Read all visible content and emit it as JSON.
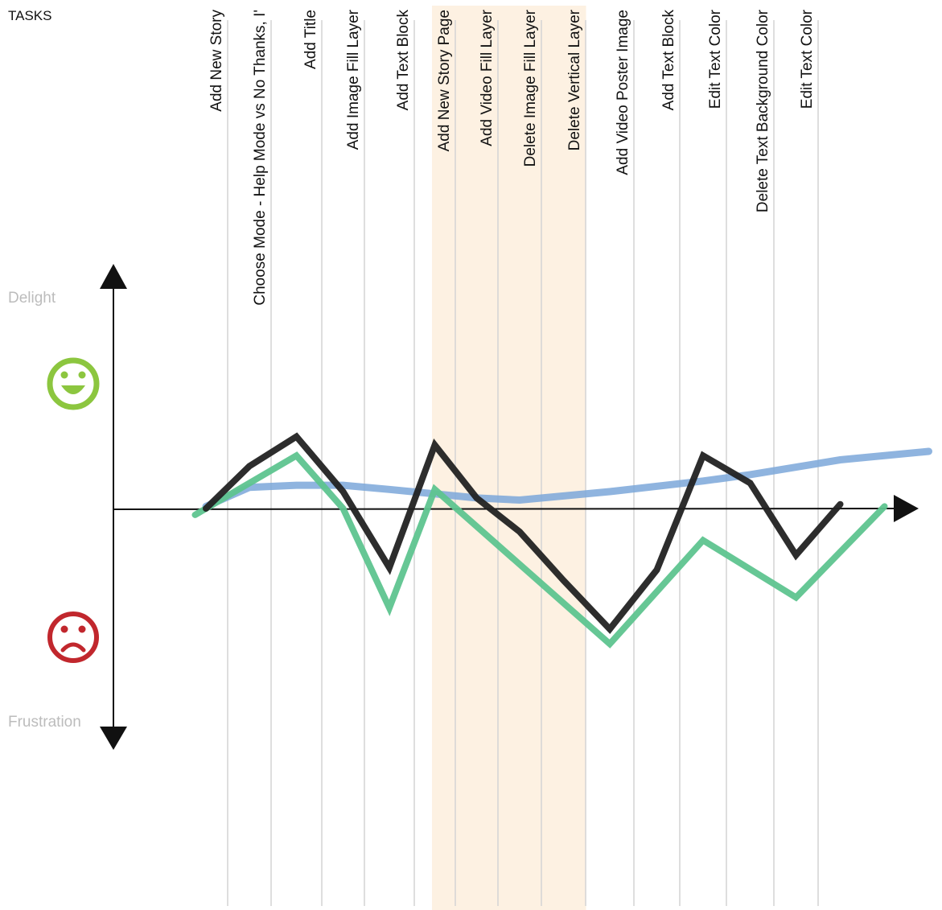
{
  "header": {
    "title": "TASKS"
  },
  "axis": {
    "top_label": "Delight",
    "bottom_label": "Frustration"
  },
  "icons": {
    "delight": {
      "name": "smiley-face-icon",
      "color": "#8cc63f"
    },
    "frustration": {
      "name": "sad-face-icon",
      "color": "#c1272d"
    }
  },
  "colors": {
    "highlight_band": "#fdf1e2",
    "gridline": "#d4d4d4",
    "axis": "#111111"
  },
  "chart_data": {
    "type": "line",
    "title": "",
    "xlabel": "TASKS",
    "ylabel": "",
    "y_top_label": "Delight",
    "y_bottom_label": "Frustration",
    "ylim": [
      -1,
      1
    ],
    "grid": "vertical",
    "categories": [
      "Add New Story",
      "Choose Mode - Help Mode vs No Thanks, I'",
      "Add Title",
      "Add Image Fill Layer",
      "Add Text Block",
      "Add New Story Page",
      "Add Video Fill Layer",
      "Delete Image Fill Layer",
      "Delete Vertical Layer",
      "Add Video Poster Image",
      "Add Text Block",
      "Edit Text Color",
      "Delete Text Background Color",
      "Edit Text Color"
    ],
    "highlighted_categories": [
      5,
      6,
      7,
      8
    ],
    "series": [
      {
        "color": "#222222",
        "points": [
          [
            -0.5,
            0.0
          ],
          [
            0.5,
            0.2
          ],
          [
            1.5,
            0.34
          ],
          [
            2.5,
            0.08
          ],
          [
            3.5,
            -0.28
          ],
          [
            4.5,
            0.3
          ],
          [
            5.5,
            0.05
          ],
          [
            6.5,
            -0.11
          ],
          [
            7.5,
            -0.34
          ],
          [
            8.5,
            -0.57
          ],
          [
            9.5,
            -0.29
          ],
          [
            10.5,
            0.25
          ],
          [
            11.5,
            0.12
          ],
          [
            12.5,
            -0.22
          ],
          [
            13.5,
            0.02
          ]
        ]
      },
      {
        "color": "#5ec48f",
        "points": [
          [
            -0.75,
            -0.03
          ],
          [
            1.5,
            0.25
          ],
          [
            2.5,
            0.0
          ],
          [
            3.5,
            -0.47
          ],
          [
            4.5,
            0.09
          ],
          [
            8.5,
            -0.64
          ],
          [
            10.5,
            -0.15
          ],
          [
            12.5,
            -0.42
          ],
          [
            14.5,
            0.01
          ]
        ]
      },
      {
        "color": "#7ba7d9",
        "points": [
          [
            -0.5,
            0.01
          ],
          [
            0.5,
            0.1
          ],
          [
            1.5,
            0.11
          ],
          [
            2.5,
            0.11
          ],
          [
            3.5,
            0.09
          ],
          [
            5.5,
            0.05
          ],
          [
            6.5,
            0.04
          ],
          [
            8.5,
            0.08
          ],
          [
            10.5,
            0.13
          ],
          [
            11.5,
            0.16
          ],
          [
            13.5,
            0.23
          ],
          [
            15.5,
            0.27
          ]
        ]
      }
    ]
  }
}
